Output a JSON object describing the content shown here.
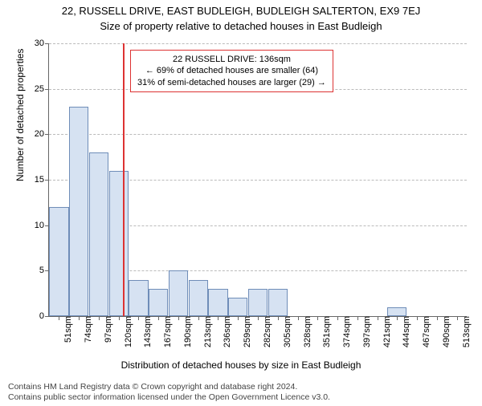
{
  "title": "22, RUSSELL DRIVE, EAST BUDLEIGH, BUDLEIGH SALTERTON, EX9 7EJ",
  "subtitle": "Size of property relative to detached houses in East Budleigh",
  "y_axis": {
    "label": "Number of detached properties",
    "ticks": [
      0,
      5,
      10,
      15,
      20,
      25,
      30
    ],
    "max": 30
  },
  "x_axis": {
    "label": "Distribution of detached houses by size in East Budleigh"
  },
  "annotation": {
    "line1": "22 RUSSELL DRIVE: 136sqm",
    "line2": "← 69% of detached houses are smaller (64)",
    "line3": "31% of semi-detached houses are larger (29) →"
  },
  "marker_fraction_across": 0.177,
  "bar_fill": "#d6e2f2",
  "bar_stroke": "#6f8db8",
  "marker_color": "#d33",
  "categories": [
    "51sqm",
    "74sqm",
    "97sqm",
    "120sqm",
    "143sqm",
    "167sqm",
    "190sqm",
    "213sqm",
    "236sqm",
    "259sqm",
    "282sqm",
    "305sqm",
    "328sqm",
    "351sqm",
    "374sqm",
    "397sqm",
    "421sqm",
    "444sqm",
    "467sqm",
    "490sqm",
    "513sqm"
  ],
  "values": [
    12,
    23,
    18,
    16,
    4,
    3,
    5,
    4,
    3,
    2,
    3,
    3,
    0,
    0,
    0,
    0,
    0,
    1,
    0,
    0,
    0
  ],
  "footer": {
    "line1": "Contains HM Land Registry data © Crown copyright and database right 2024.",
    "line2": "Contains public sector information licensed under the Open Government Licence v3.0."
  }
}
